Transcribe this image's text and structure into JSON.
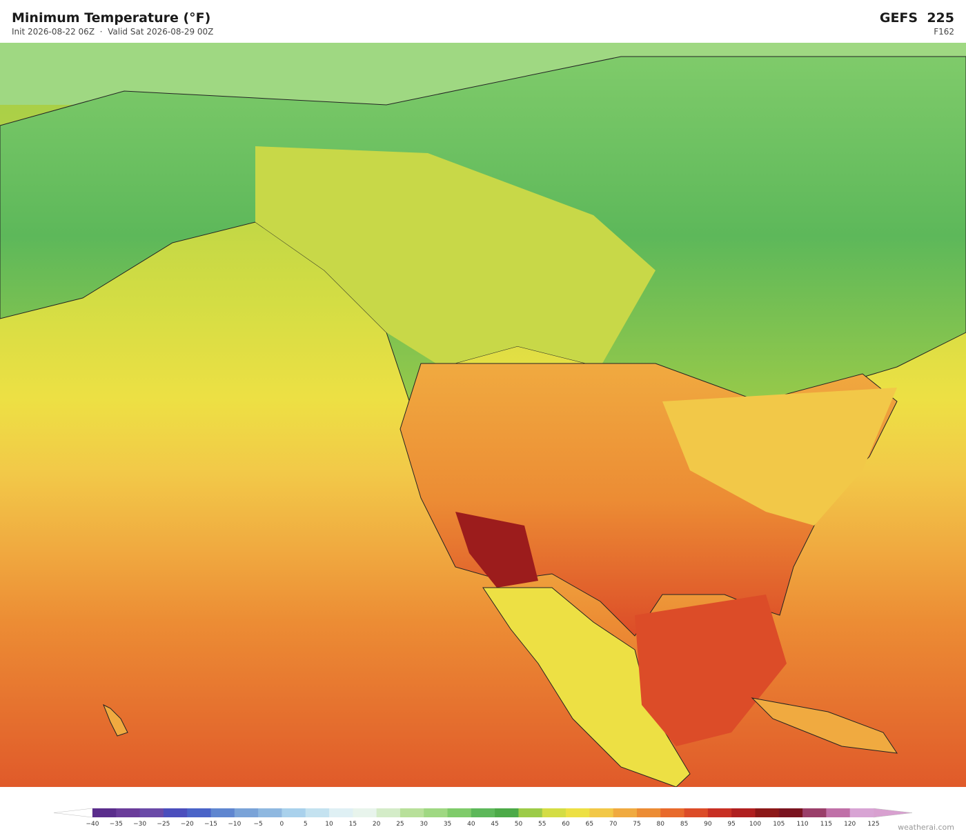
{
  "header": {
    "title": "Minimum Temperature  (°F)",
    "init": "Init 2026-08-22 06Z",
    "valid": "Valid Sat 2026-08-29 00Z",
    "model": "GEFS  225",
    "forecast_hour": "F162"
  },
  "colorbar": {
    "ticks": [
      "−40",
      "−35",
      "−30",
      "−25",
      "−20",
      "−15",
      "−10",
      "−5",
      "0",
      "5",
      "10",
      "15",
      "20",
      "25",
      "30",
      "35",
      "40",
      "45",
      "50",
      "55",
      "60",
      "65",
      "70",
      "75",
      "80",
      "85",
      "90",
      "95",
      "100",
      "105",
      "110",
      "115",
      "120",
      "125"
    ],
    "colors": [
      "#5a2d8c",
      "#6a3c9a",
      "#6a4aa8",
      "#4b4ebd",
      "#4a64c8",
      "#5f86d0",
      "#7aa3d8",
      "#8fb8e0",
      "#a9d1ec",
      "#c4e2f0",
      "#dff0f4",
      "#e8f4ec",
      "#d4ecc8",
      "#b8e09a",
      "#9fd882",
      "#7fcb6a",
      "#5db85a",
      "#4caa48",
      "#9ccb48",
      "#d4dd44",
      "#ede044",
      "#f2c848",
      "#f0aa40",
      "#ec8c34",
      "#e86a2c",
      "#dc4c28",
      "#c83024",
      "#b02020",
      "#8c1818",
      "#7a1420",
      "#9a3f6a",
      "#c070a8",
      "#d8a4d4"
    ],
    "under_color": "#ffffff",
    "over_color": "#d8a0d0"
  },
  "footer": {
    "credit": "weatherai.com"
  }
}
